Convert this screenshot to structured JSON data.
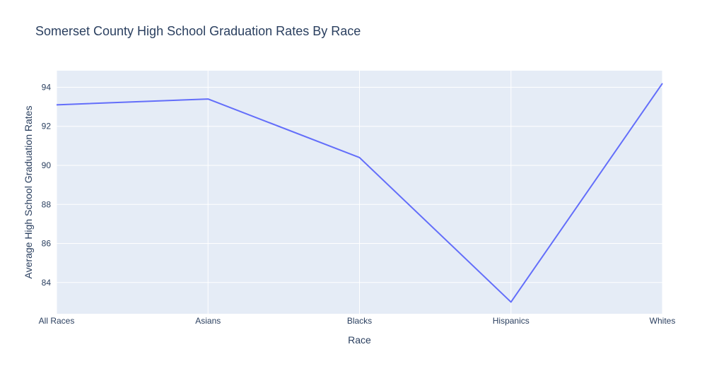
{
  "chart_data": {
    "type": "line",
    "title": "Somerset County High School Graduation Rates By Race",
    "xlabel": "Race",
    "ylabel": "Average High School Graduation Rates",
    "categories": [
      "All Races",
      "Asians",
      "Blacks",
      "Hispanics",
      "Whites"
    ],
    "series": [
      {
        "values": [
          93.1,
          93.4,
          90.4,
          83.0,
          94.2
        ]
      }
    ],
    "yticks": [
      84,
      86,
      88,
      90,
      92,
      94
    ],
    "ylim": [
      82.4,
      94.85
    ],
    "grid": true,
    "legend": "none",
    "colors": {
      "line": "#636efa",
      "plot_bg": "#e5ecf6",
      "grid": "#ffffff",
      "text": "#2a3f5f"
    }
  }
}
